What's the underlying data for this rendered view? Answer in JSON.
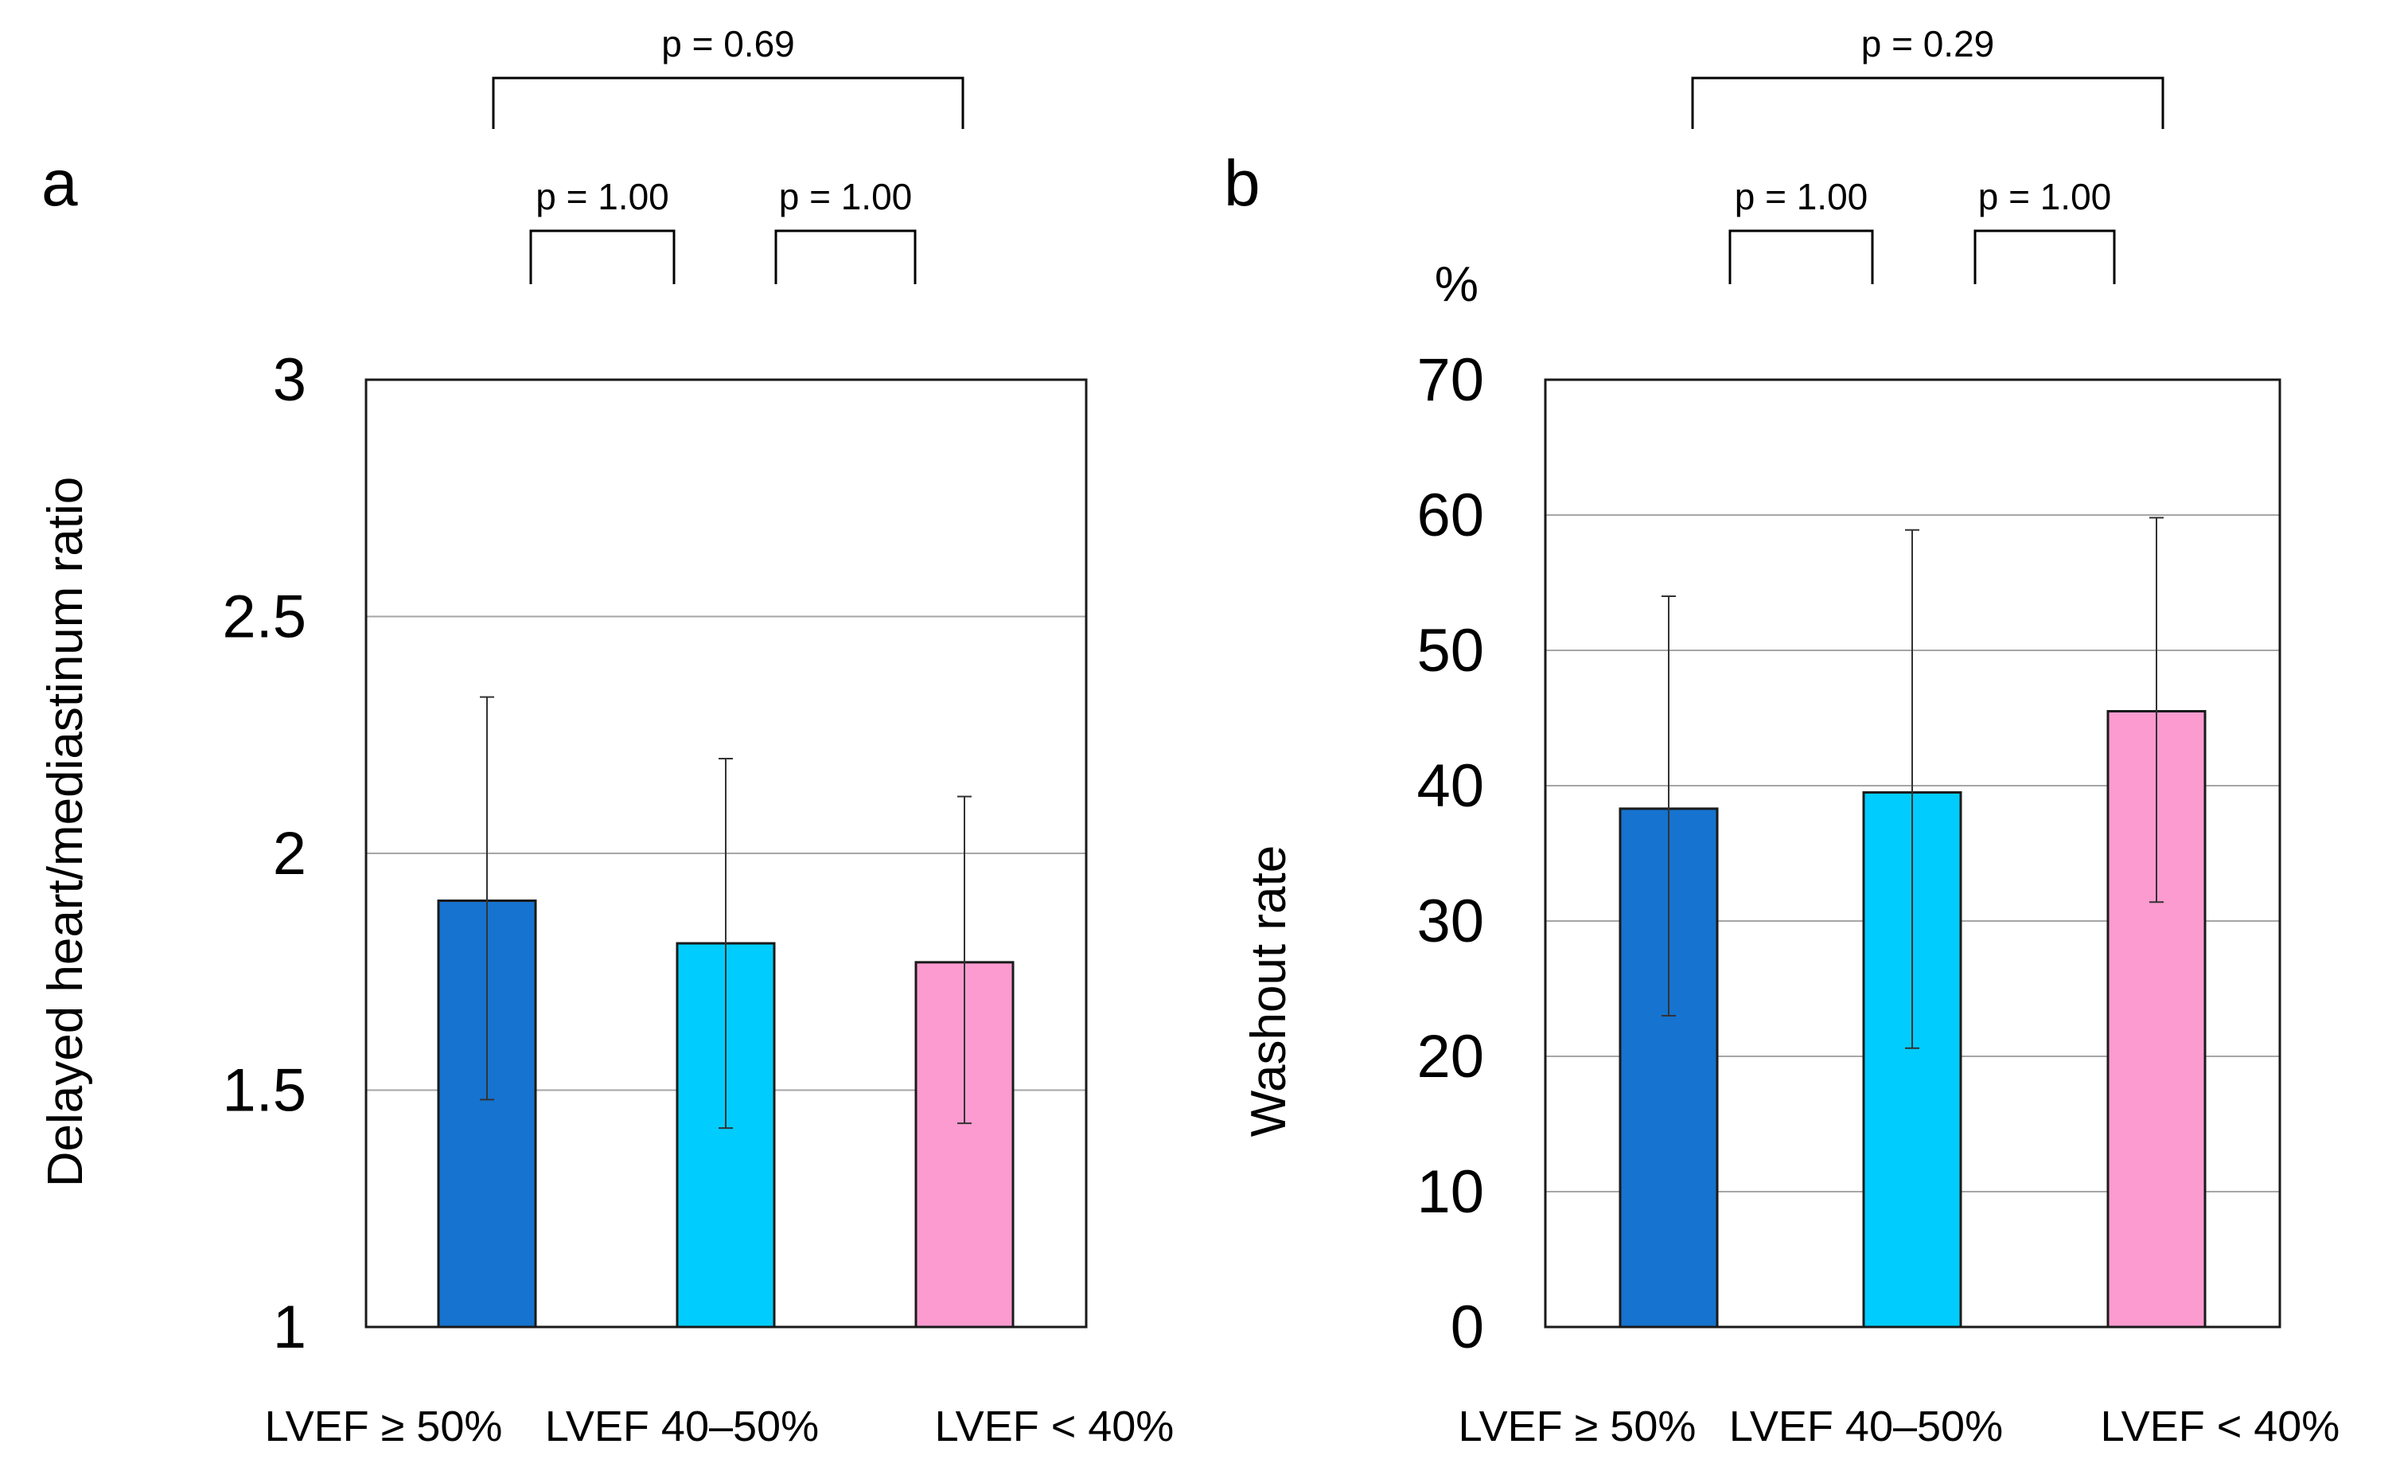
{
  "chart_data": [
    {
      "panel": "a",
      "type": "bar",
      "ylabel": "Delayed heart/mediastinum ratio",
      "unit": "",
      "ylim": [
        1,
        3
      ],
      "yticks": [
        "3",
        "2.5",
        "2",
        "1.5",
        "1"
      ],
      "ytick_values": [
        3,
        2.5,
        2,
        1.5,
        1
      ],
      "grid": true,
      "categories": [
        "LVEF ≥ 50%",
        "LVEF 40–50%",
        "LVEF < 40%"
      ],
      "values": [
        1.9,
        1.81,
        1.77
      ],
      "error_low": [
        1.48,
        1.42,
        1.43
      ],
      "error_high": [
        2.33,
        2.2,
        2.12
      ],
      "colors": [
        "#1673cf",
        "#00cdfd",
        "#fc9bd0"
      ],
      "comparisons": [
        {
          "from": 0,
          "to": 1,
          "label": "p = 1.00",
          "level": 1
        },
        {
          "from": 1,
          "to": 2,
          "label": "p = 1.00",
          "level": 1
        },
        {
          "from": 0,
          "to": 2,
          "label": "p = 0.69",
          "level": 2
        }
      ]
    },
    {
      "panel": "b",
      "type": "bar",
      "ylabel": "Washout rate",
      "unit": "%",
      "ylim": [
        0,
        70
      ],
      "yticks": [
        "70",
        "60",
        "50",
        "40",
        "30",
        "20",
        "10",
        "0"
      ],
      "ytick_values": [
        70,
        60,
        50,
        40,
        30,
        20,
        10,
        0
      ],
      "grid": true,
      "categories": [
        "LVEF ≥ 50%",
        "LVEF 40–50%",
        "LVEF < 40%"
      ],
      "values": [
        38.3,
        39.5,
        45.5
      ],
      "error_low": [
        23.0,
        20.6,
        31.4
      ],
      "error_high": [
        54.0,
        58.9,
        59.8
      ],
      "colors": [
        "#1673cf",
        "#00cdfd",
        "#fc9bd0"
      ],
      "comparisons": [
        {
          "from": 0,
          "to": 1,
          "label": "p = 1.00",
          "level": 1
        },
        {
          "from": 1,
          "to": 2,
          "label": "p = 1.00",
          "level": 1
        },
        {
          "from": 0,
          "to": 2,
          "label": "p = 0.29",
          "level": 2
        }
      ]
    }
  ]
}
